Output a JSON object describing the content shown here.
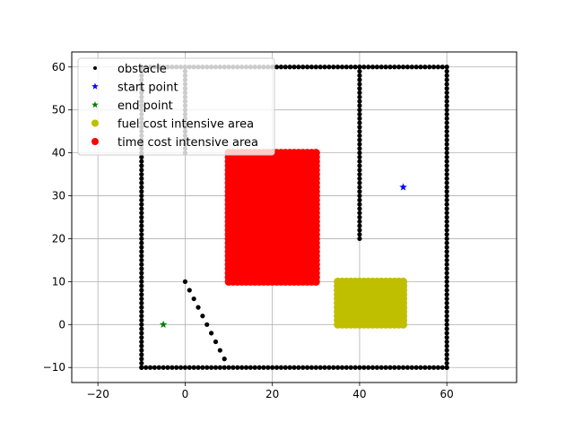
{
  "chart_data": {
    "type": "scatter",
    "xlim": [
      -26,
      76
    ],
    "ylim": [
      -13.5,
      63.5
    ],
    "xticks": [
      -20,
      0,
      20,
      40,
      60
    ],
    "yticks": [
      -10,
      0,
      10,
      20,
      30,
      40,
      50,
      60
    ],
    "grid": true,
    "legend_position": "top-left",
    "series": [
      {
        "name": "obstacle",
        "color": "#000000",
        "marker": "dot",
        "segments": [
          {
            "from": [
              -10,
              -10
            ],
            "to": [
              60,
              -10
            ],
            "step": 1
          },
          {
            "from": [
              60,
              -10
            ],
            "to": [
              60,
              59
            ],
            "step": 1
          },
          {
            "from": [
              60,
              60
            ],
            "to": [
              -10,
              60
            ],
            "step": 1
          },
          {
            "from": [
              -10,
              60
            ],
            "to": [
              -10,
              -10
            ],
            "step": 1
          },
          {
            "from": [
              0,
              60
            ],
            "to": [
              0,
              40
            ],
            "step": 1
          },
          {
            "from": [
              40,
              60
            ],
            "to": [
              40,
              20
            ],
            "step": 1
          }
        ],
        "points": [
          [
            0,
            10
          ],
          [
            1,
            8
          ],
          [
            2,
            6
          ],
          [
            3,
            4
          ],
          [
            4,
            2
          ],
          [
            5,
            0
          ],
          [
            6,
            -2
          ],
          [
            7,
            -4
          ],
          [
            8,
            -6
          ],
          [
            9,
            -8
          ]
        ]
      },
      {
        "name": "start point",
        "color": "#0000ff",
        "marker": "star",
        "points": [
          [
            50,
            32
          ]
        ]
      },
      {
        "name": "end point",
        "color": "#008000",
        "marker": "star",
        "points": [
          [
            -5,
            0
          ]
        ]
      },
      {
        "name": "fuel cost intensive area",
        "color": "#bfbf00",
        "marker": "circle",
        "region": {
          "x": [
            35,
            50
          ],
          "y": [
            0,
            10
          ]
        }
      },
      {
        "name": "time cost intensive area",
        "color": "#ff0000",
        "marker": "circle",
        "region": {
          "x": [
            10,
            30
          ],
          "y": [
            10,
            40
          ]
        }
      }
    ]
  }
}
